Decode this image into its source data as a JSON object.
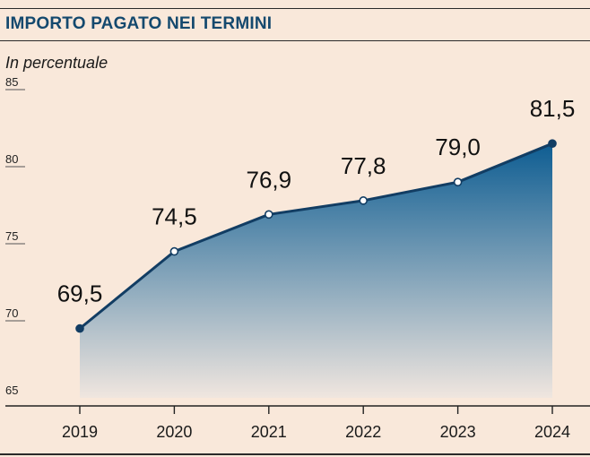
{
  "header": {
    "title": "IMPORTO PAGATO NEI TERMINI",
    "subtitle": "In percentuale"
  },
  "colors": {
    "background": "#f9e8da",
    "title": "#14496e",
    "line": "#123d63",
    "area_top": "#0e5d92",
    "area_bottom": "#f0e6df"
  },
  "chart_data": {
    "type": "area",
    "title": "IMPORTO PAGATO NEI TERMINI",
    "subtitle": "In percentuale",
    "xlabel": "",
    "ylabel": "",
    "categories": [
      "2019",
      "2020",
      "2021",
      "2022",
      "2023",
      "2024"
    ],
    "series": [
      {
        "values": [
          69.5,
          74.5,
          76.9,
          77.8,
          79.0,
          81.5
        ]
      }
    ],
    "data_labels": [
      "69,5",
      "74,5",
      "76,9",
      "77,8",
      "79,0",
      "81,5"
    ],
    "yticks": [
      "65",
      "70",
      "75",
      "80",
      "85"
    ],
    "ylim": [
      65,
      85
    ],
    "grid": false,
    "legend": "none"
  }
}
